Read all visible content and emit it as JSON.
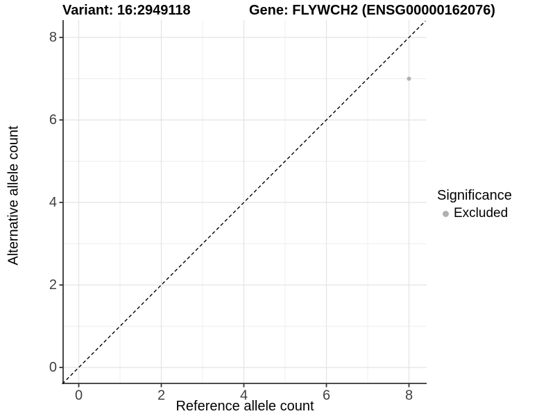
{
  "figure": {
    "title_left": "Variant: 16:2949118",
    "title_right": "Gene: FLYWCH2 (ENSG00000162076)"
  },
  "axes": {
    "x_label": "Reference allele count",
    "y_label": "Alternative allele count"
  },
  "legend": {
    "title": "Significance",
    "items": [
      {
        "label": "Excluded",
        "color": "#b0b0b0"
      }
    ]
  },
  "chart_data": {
    "type": "scatter",
    "title": "Variant: 16:2949118    Gene: FLYWCH2 (ENSG00000162076)",
    "xlabel": "Reference allele count",
    "ylabel": "Alternative allele count",
    "xlim": [
      -0.4,
      8.4
    ],
    "ylim": [
      -0.4,
      8.4
    ],
    "x_ticks": [
      0,
      2,
      4,
      6,
      8
    ],
    "y_ticks": [
      0,
      2,
      4,
      6,
      8
    ],
    "x_minor_ticks": [
      1,
      3,
      5,
      7
    ],
    "y_minor_ticks": [
      1,
      3,
      5,
      7
    ],
    "grid": "major+minor on white panel",
    "legend_position": "right",
    "series": [
      {
        "name": "Excluded",
        "color": "#b0b0b0",
        "points": [
          [
            8,
            7
          ]
        ]
      }
    ],
    "reference_line": {
      "kind": "identity y=x",
      "style": "dashed",
      "color": "#000000",
      "x": [
        -0.4,
        8.4
      ],
      "y": [
        -0.4,
        8.4
      ]
    }
  },
  "colors": {
    "background": "#ffffff",
    "grid_major": "#e3e3e3",
    "grid_minor": "#eeeeee",
    "axis_line": "#333333",
    "tick_label": "#404040",
    "point": "#b0b0b0"
  }
}
